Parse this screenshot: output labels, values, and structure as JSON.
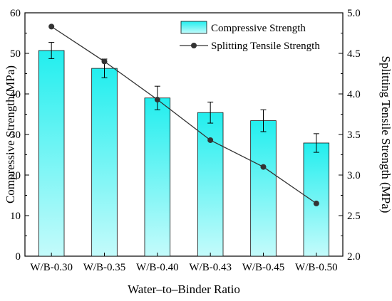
{
  "chart_data": {
    "type": "bar+line",
    "xlabel": "Water–to–Binder Ratio",
    "categories": [
      "W/B-0.30",
      "W/B-0.35",
      "W/B-0.40",
      "W/B-0.43",
      "W/B-0.45",
      "W/B-0.50"
    ],
    "left_axis": {
      "label": "Compressive Strength(MPa)",
      "ylim": [
        0,
        60
      ],
      "ticks": [
        "0",
        "10",
        "20",
        "30",
        "40",
        "50",
        "60"
      ]
    },
    "right_axis": {
      "label": "Splitting Tensile Strength (MPa)",
      "ylim": [
        2.0,
        5.0
      ],
      "ticks": [
        "2.0",
        "2.5",
        "3.0",
        "3.5",
        "4.0",
        "4.5",
        "5.0"
      ]
    },
    "series": [
      {
        "name": "Compressive Strength",
        "type": "bar",
        "axis": "left",
        "values": [
          50.7,
          46.3,
          39.0,
          35.4,
          33.4,
          27.9
        ],
        "error": [
          2.0,
          2.3,
          2.9,
          2.6,
          2.7,
          2.3
        ],
        "color": "#22eeee"
      },
      {
        "name": "Splitting Tensile Strength",
        "type": "line",
        "axis": "right",
        "values": [
          4.83,
          4.4,
          3.93,
          3.43,
          3.1,
          2.65
        ],
        "color": "#333333"
      }
    ],
    "legend_position": "top-right",
    "grid": false
  }
}
